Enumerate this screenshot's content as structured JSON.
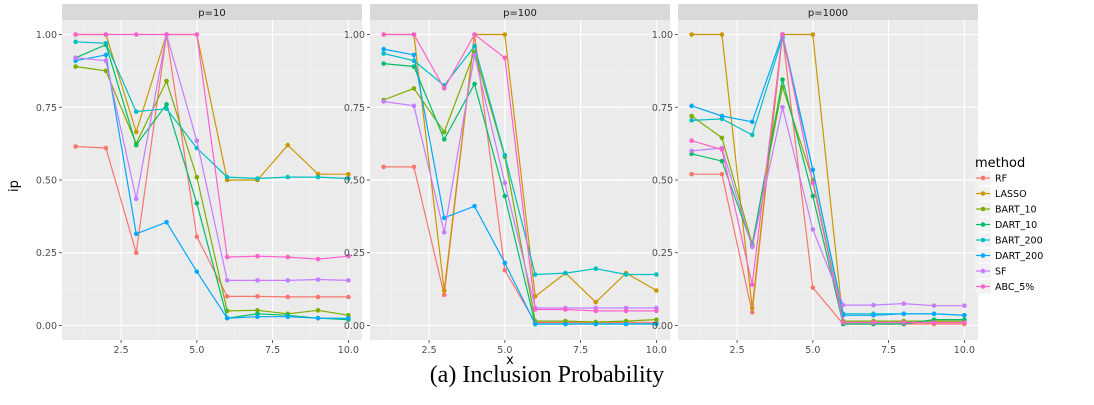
{
  "caption": "(a) Inclusion Probability",
  "legend_title": "method",
  "colors": {
    "RF": "#F8766D",
    "LASSO": "#CD9600",
    "BART_10": "#7CAE00",
    "DART_10": "#00BE67",
    "BART_200": "#00BFC4",
    "DART_200": "#00A9FF",
    "SF": "#C77CFF",
    "ABC_5%": "#FF61CC"
  },
  "chart_data": [
    {
      "type": "line",
      "title": "p=10",
      "xlabel": "x",
      "ylabel": "ip",
      "xlim": [
        0.55,
        10.45
      ],
      "ylim": [
        -0.05,
        1.05
      ],
      "xticks": [
        2.5,
        5.0,
        7.5,
        10.0
      ],
      "xtick_labels": [
        "2.5",
        "5.0",
        "7.5",
        "10.0"
      ],
      "yticks": [
        0.0,
        0.25,
        0.5,
        0.75,
        1.0
      ],
      "ytick_labels": [
        "0.00",
        "0.25",
        "0.50",
        "0.75",
        "1.00"
      ],
      "x": [
        1,
        2,
        3,
        4,
        5,
        6,
        7,
        8,
        9,
        10
      ],
      "grid": true,
      "legend": "right",
      "series": [
        {
          "name": "RF",
          "values": [
            0.615,
            0.61,
            0.25,
            1.0,
            0.305,
            0.1,
            0.1,
            0.098,
            0.098,
            0.098
          ]
        },
        {
          "name": "LASSO",
          "values": [
            1.0,
            1.0,
            0.665,
            1.0,
            1.0,
            0.5,
            0.5,
            0.62,
            0.52,
            0.52
          ]
        },
        {
          "name": "BART_10",
          "values": [
            0.89,
            0.875,
            0.625,
            0.84,
            0.51,
            0.05,
            0.052,
            0.04,
            0.052,
            0.035
          ]
        },
        {
          "name": "DART_10",
          "values": [
            0.92,
            0.965,
            0.62,
            0.76,
            0.42,
            0.025,
            0.04,
            0.035,
            0.025,
            0.02
          ]
        },
        {
          "name": "BART_200",
          "values": [
            0.975,
            0.97,
            0.735,
            0.745,
            0.61,
            0.51,
            0.505,
            0.51,
            0.51,
            0.505
          ]
        },
        {
          "name": "DART_200",
          "values": [
            0.91,
            0.93,
            0.315,
            0.355,
            0.185,
            0.025,
            0.03,
            0.03,
            0.025,
            0.025
          ]
        },
        {
          "name": "SF",
          "values": [
            0.92,
            0.91,
            0.435,
            1.0,
            0.635,
            0.155,
            0.155,
            0.155,
            0.158,
            0.155
          ]
        },
        {
          "name": "ABC_5%",
          "values": [
            1.0,
            1.0,
            1.0,
            1.0,
            1.0,
            0.235,
            0.238,
            0.235,
            0.228,
            0.238
          ]
        }
      ]
    },
    {
      "type": "line",
      "title": "p=100",
      "xlabel": "x",
      "ylabel": "ip",
      "xlim": [
        0.55,
        10.45
      ],
      "ylim": [
        -0.05,
        1.05
      ],
      "xticks": [
        2.5,
        5.0,
        7.5,
        10.0
      ],
      "xtick_labels": [
        "2.5",
        "5.0",
        "7.5",
        "10.0"
      ],
      "yticks": [
        0.0,
        0.25,
        0.5,
        0.75,
        1.0
      ],
      "ytick_labels": [
        "0.00",
        "0.25",
        "0.50",
        "0.75",
        "1.00"
      ],
      "x": [
        1,
        2,
        3,
        4,
        5,
        6,
        7,
        8,
        9,
        10
      ],
      "grid": true,
      "legend": "right",
      "series": [
        {
          "name": "RF",
          "values": [
            0.545,
            0.545,
            0.105,
            1.0,
            0.19,
            0.01,
            0.01,
            0.01,
            0.01,
            0.01
          ]
        },
        {
          "name": "LASSO",
          "values": [
            1.0,
            1.0,
            0.12,
            1.0,
            1.0,
            0.1,
            0.18,
            0.08,
            0.18,
            0.12
          ]
        },
        {
          "name": "BART_10",
          "values": [
            0.775,
            0.815,
            0.665,
            0.94,
            0.58,
            0.015,
            0.015,
            0.012,
            0.015,
            0.02
          ]
        },
        {
          "name": "DART_10",
          "values": [
            0.9,
            0.89,
            0.64,
            0.83,
            0.445,
            0.005,
            0.005,
            0.005,
            0.005,
            0.005
          ]
        },
        {
          "name": "BART_200",
          "values": [
            0.935,
            0.91,
            0.825,
            0.96,
            0.585,
            0.175,
            0.18,
            0.195,
            0.175,
            0.175
          ]
        },
        {
          "name": "DART_200",
          "values": [
            0.95,
            0.93,
            0.37,
            0.41,
            0.215,
            0.005,
            0.005,
            0.005,
            0.005,
            0.005
          ]
        },
        {
          "name": "SF",
          "values": [
            0.77,
            0.755,
            0.32,
            0.93,
            0.49,
            0.06,
            0.06,
            0.06,
            0.06,
            0.06
          ]
        },
        {
          "name": "ABC_5%",
          "values": [
            1.0,
            1.0,
            0.815,
            1.0,
            0.92,
            0.055,
            0.055,
            0.05,
            0.05,
            0.05
          ]
        }
      ]
    },
    {
      "type": "line",
      "title": "p=1000",
      "xlabel": "x",
      "ylabel": "ip",
      "xlim": [
        0.55,
        10.45
      ],
      "ylim": [
        -0.05,
        1.05
      ],
      "xticks": [
        2.5,
        5.0,
        7.5,
        10.0
      ],
      "xtick_labels": [
        "2.5",
        "5.0",
        "7.5",
        "10.0"
      ],
      "yticks": [
        0.0,
        0.25,
        0.5,
        0.75,
        1.0
      ],
      "ytick_labels": [
        "0.00",
        "0.25",
        "0.50",
        "0.75",
        "1.00"
      ],
      "x": [
        1,
        2,
        3,
        4,
        5,
        6,
        7,
        8,
        9,
        10
      ],
      "grid": true,
      "legend": "right",
      "series": [
        {
          "name": "RF",
          "values": [
            0.52,
            0.52,
            0.045,
            1.0,
            0.13,
            0.005,
            0.005,
            0.005,
            0.005,
            0.005
          ]
        },
        {
          "name": "LASSO",
          "values": [
            1.0,
            1.0,
            0.06,
            1.0,
            1.0,
            0.01,
            0.01,
            0.01,
            0.01,
            0.01
          ]
        },
        {
          "name": "BART_10",
          "values": [
            0.72,
            0.645,
            0.28,
            0.82,
            0.5,
            0.015,
            0.015,
            0.015,
            0.015,
            0.015
          ]
        },
        {
          "name": "DART_10",
          "values": [
            0.59,
            0.565,
            0.275,
            0.845,
            0.445,
            0.005,
            0.005,
            0.005,
            0.02,
            0.02
          ]
        },
        {
          "name": "BART_200",
          "values": [
            0.705,
            0.71,
            0.655,
            0.99,
            0.535,
            0.04,
            0.04,
            0.04,
            0.04,
            0.035
          ]
        },
        {
          "name": "DART_200",
          "values": [
            0.755,
            0.72,
            0.7,
            1.0,
            0.535,
            0.035,
            0.035,
            0.04,
            0.04,
            0.035
          ]
        },
        {
          "name": "SF",
          "values": [
            0.6,
            0.61,
            0.27,
            0.75,
            0.33,
            0.07,
            0.07,
            0.075,
            0.068,
            0.068
          ]
        },
        {
          "name": "ABC_5%",
          "values": [
            0.635,
            0.605,
            0.14,
            1.0,
            0.49,
            0.01,
            0.01,
            0.01,
            0.01,
            0.01
          ]
        }
      ]
    }
  ]
}
